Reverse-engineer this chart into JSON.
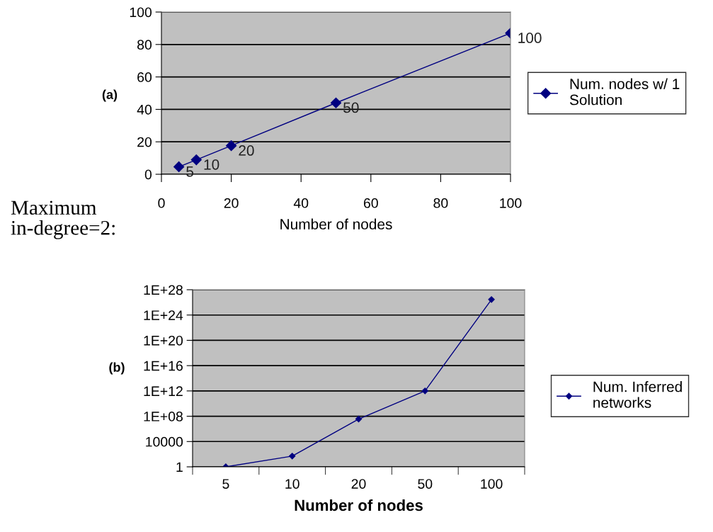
{
  "chart_data": [
    {
      "type": "line",
      "xlabel": "Number of nodes",
      "x": [
        5,
        10,
        20,
        50,
        100
      ],
      "series": [
        {
          "name": "Num. nodes w/ 1\nSolution",
          "color": "#000080",
          "values": [
            4.6,
            8.9,
            17.6,
            44,
            87
          ]
        }
      ],
      "xlim": [
        0,
        100
      ],
      "xticks": [
        0,
        20,
        40,
        60,
        80,
        100
      ],
      "ylim": [
        0,
        100
      ],
      "yticks": [
        0,
        20,
        40,
        60,
        80,
        100
      ],
      "grid": "y",
      "legend": "right",
      "marker": "diamond",
      "annotations": [
        "(a)",
        "Maximum\nin-degree=2:",
        {
          "text": "5",
          "x": 5,
          "y": 4.6
        },
        {
          "text": "10",
          "x": 10,
          "y": 8.9
        },
        {
          "text": "20",
          "x": 20,
          "y": 17.6
        },
        {
          "text": "50",
          "x": 50,
          "y": 44
        },
        {
          "text": "100",
          "x": 100,
          "y": 87
        }
      ]
    },
    {
      "type": "line",
      "xlabel": "Number of nodes",
      "categories": [
        "5",
        "10",
        "20",
        "50",
        "100"
      ],
      "series": [
        {
          "name": "Num. Inferred\nnetworks",
          "color": "#000080",
          "values": [
            1,
            50,
            36000000.0,
            1000000000000.0,
            2.8e+26
          ]
        }
      ],
      "log": true,
      "ylim": [
        1,
        1e+28
      ],
      "yticks": [
        {
          "value": 1,
          "label": "1"
        },
        {
          "value": 10000,
          "label": "10000"
        },
        {
          "value": 100000000.0,
          "label": "1E+08"
        },
        {
          "value": 1000000000000.0,
          "label": "1E+12"
        },
        {
          "value": 1e+16,
          "label": "1E+16"
        },
        {
          "value": 1e+20,
          "label": "1E+20"
        },
        {
          "value": 1e+24,
          "label": "1E+24"
        },
        {
          "value": 1e+28,
          "label": "1E+28"
        }
      ],
      "grid": "y",
      "legend": "right",
      "marker": "diamond",
      "annotations": [
        "(b)"
      ]
    }
  ]
}
